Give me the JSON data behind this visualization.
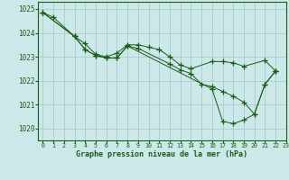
{
  "bg_color": "#cce8e8",
  "grid_color": "#aacccc",
  "line_color": "#1a5c1a",
  "xlabel": "Graphe pression niveau de la mer (hPa)",
  "xlim": [
    -0.5,
    23
  ],
  "ylim": [
    1019.5,
    1025.3
  ],
  "yticks": [
    1020,
    1021,
    1022,
    1023,
    1024,
    1025
  ],
  "xticks": [
    0,
    1,
    2,
    3,
    4,
    5,
    6,
    7,
    8,
    9,
    10,
    11,
    12,
    13,
    14,
    15,
    16,
    17,
    18,
    19,
    20,
    21,
    22,
    23
  ],
  "line1_x": [
    0,
    1,
    3,
    4,
    5,
    6,
    7,
    8,
    9,
    10,
    11,
    12,
    13,
    14,
    16,
    17,
    18,
    19,
    21,
    22
  ],
  "line1_y": [
    1024.85,
    1024.65,
    1023.85,
    1023.55,
    1023.1,
    1023.0,
    1023.15,
    1023.5,
    1023.5,
    1023.4,
    1023.3,
    1023.0,
    1022.65,
    1022.5,
    1022.8,
    1022.8,
    1022.75,
    1022.6,
    1022.85,
    1022.4
  ],
  "line2_x": [
    0,
    3,
    4,
    5,
    6,
    7,
    8,
    9,
    12,
    13,
    14,
    15,
    16,
    17,
    18,
    19,
    20,
    21,
    22
  ],
  "line2_y": [
    1024.85,
    1023.85,
    1023.3,
    1023.05,
    1022.95,
    1022.95,
    1023.45,
    1023.35,
    1022.7,
    1022.45,
    1022.3,
    1021.85,
    1021.75,
    1021.55,
    1021.35,
    1021.1,
    1020.6,
    1021.85,
    1022.4
  ],
  "line3_x": [
    0,
    3,
    4,
    5,
    6,
    7,
    8,
    16,
    17,
    18,
    19,
    20,
    21,
    22
  ],
  "line3_y": [
    1024.85,
    1023.85,
    1023.3,
    1023.05,
    1022.95,
    1022.95,
    1023.45,
    1021.65,
    1020.3,
    1020.2,
    1020.35,
    1020.6,
    1021.85,
    1022.4
  ]
}
